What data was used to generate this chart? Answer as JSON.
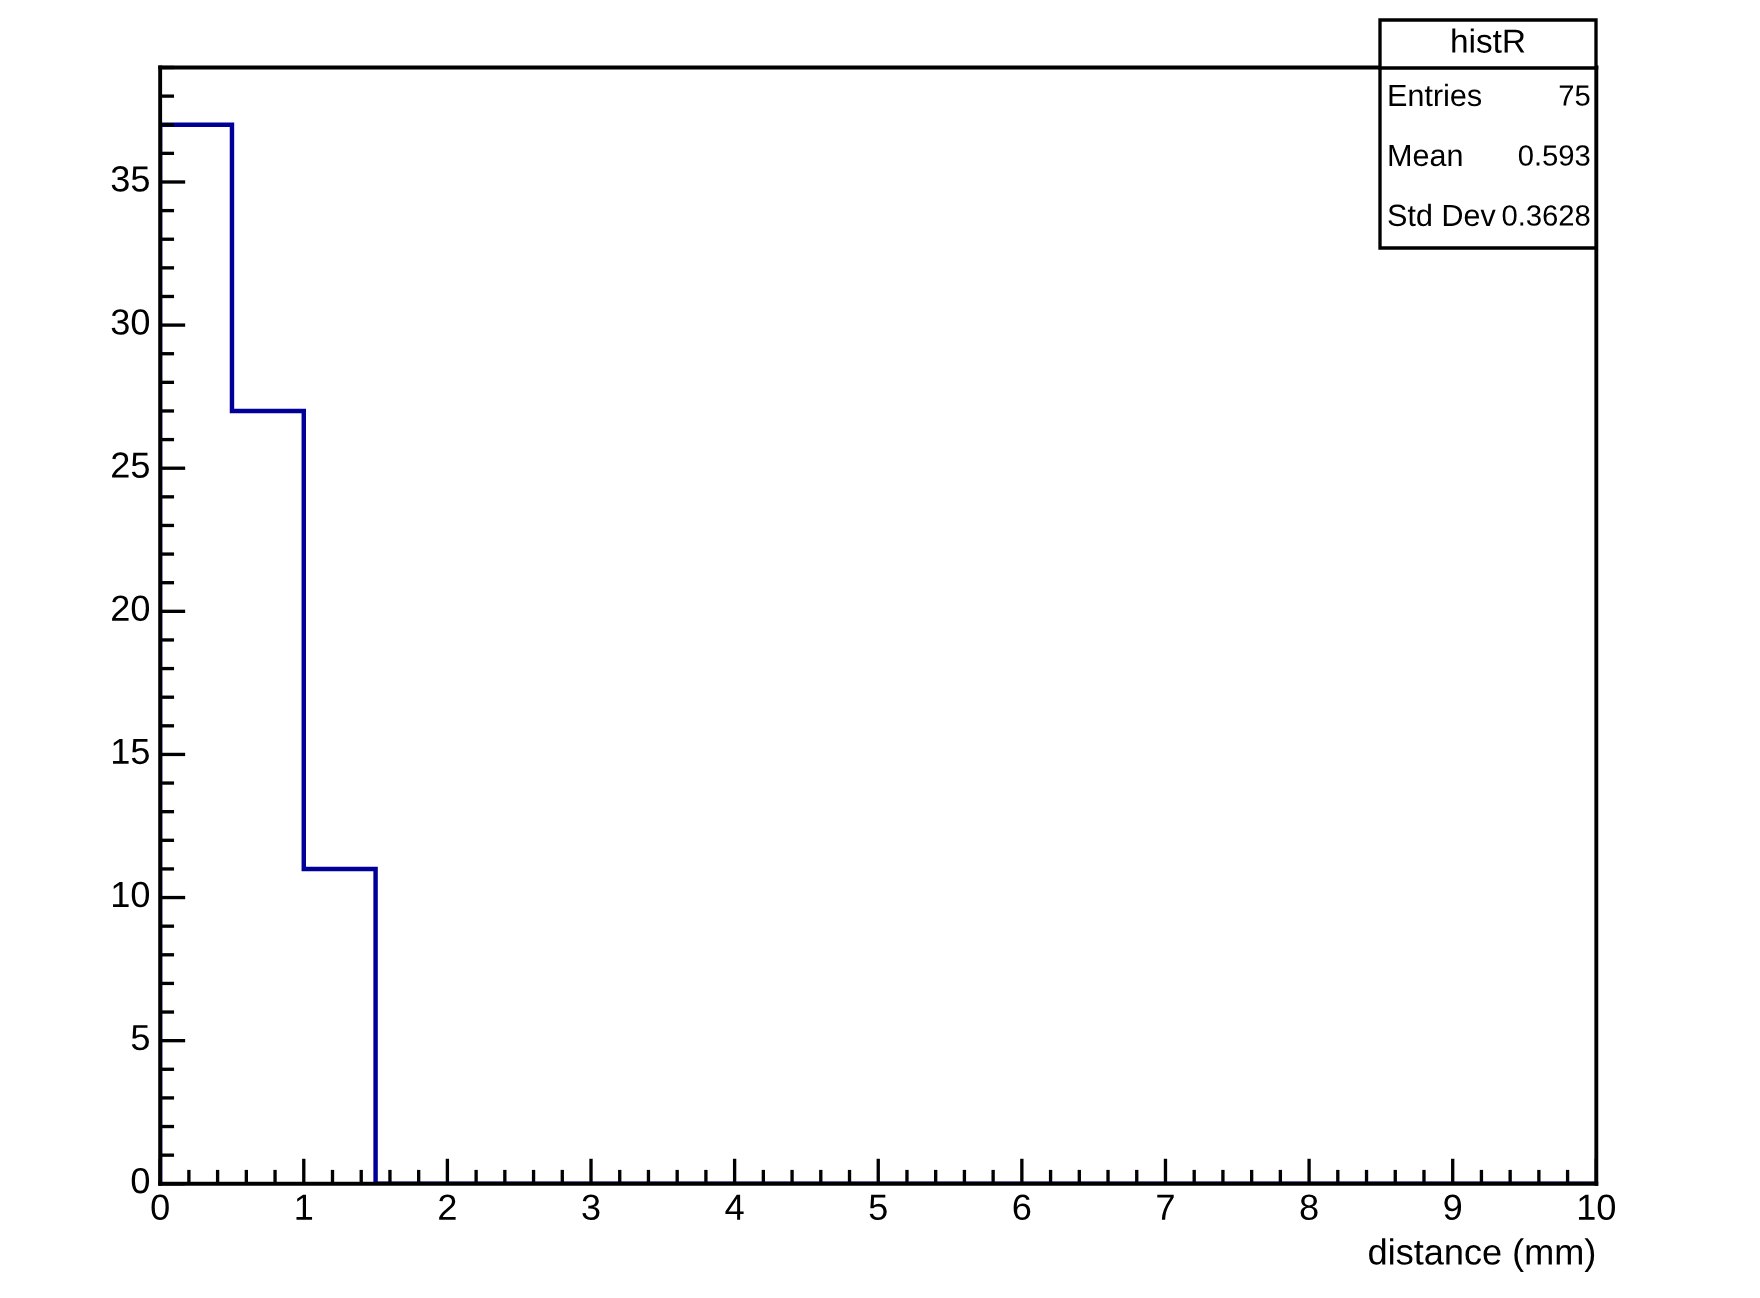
{
  "chart_data": {
    "type": "histogram",
    "title": "histR",
    "xlabel": "distance (mm)",
    "bins": [
      0,
      0.5,
      1,
      1.5,
      2,
      2.5,
      3,
      3.5,
      4,
      4.5,
      5,
      5.5,
      6,
      6.5,
      7,
      7.5,
      8,
      8.5,
      9,
      9.5,
      10
    ],
    "values": [
      37,
      27,
      11,
      0,
      0,
      0,
      0,
      0,
      0,
      0,
      0,
      0,
      0,
      0,
      0,
      0,
      0,
      0,
      0,
      0
    ],
    "color": "#000099",
    "xlim": [
      0,
      10
    ],
    "xticks": [
      0,
      1,
      2,
      3,
      4,
      5,
      6,
      7,
      8,
      9,
      10
    ],
    "ylim": [
      0,
      39
    ],
    "yticks": [
      0,
      5,
      10,
      15,
      20,
      25,
      30,
      35
    ],
    "grid": false,
    "annotations": [
      "Entries",
      "75",
      "Mean",
      "0.593",
      "Std Dev",
      "0.3628"
    ]
  }
}
